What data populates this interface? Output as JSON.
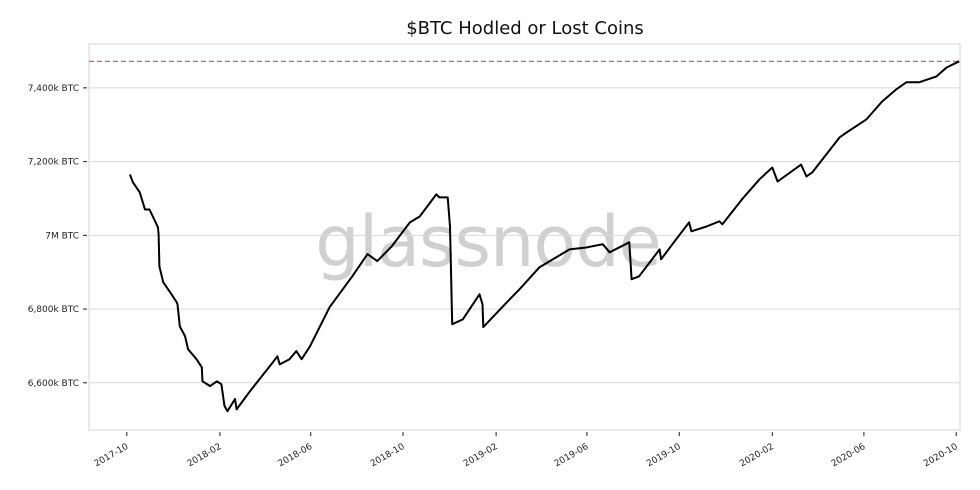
{
  "chart_data": {
    "type": "line",
    "title": "$BTC Hodled or Lost Coins",
    "watermark": "glassnode",
    "xlabel": "",
    "ylabel": "",
    "xlim": [
      "2017-08-12",
      "2020-10-06"
    ],
    "ylim": [
      6472,
      7519
    ],
    "grid": "horizontal",
    "x_ticks": [
      "2017-10",
      "2018-02",
      "2018-06",
      "2018-10",
      "2019-02",
      "2019-06",
      "2019-10",
      "2020-02",
      "2020-06",
      "2020-10"
    ],
    "y_ticks": [
      {
        "value": 6600,
        "label": "6,600k BTC"
      },
      {
        "value": 6800,
        "label": "6,800k BTC"
      },
      {
        "value": 7000,
        "label": "7M BTC"
      },
      {
        "value": 7200,
        "label": "7,200k BTC"
      },
      {
        "value": 7400,
        "label": "7,400k BTC"
      }
    ],
    "reference_line": {
      "value": 7472,
      "style": "dashed",
      "color": "#e0474c"
    },
    "line_color": "#000000",
    "series": [
      {
        "x": [
          "2017-10-05",
          "2017-10-09",
          "2017-10-18",
          "2017-10-25",
          "2017-10-31",
          "2017-11-11",
          "2017-11-12",
          "2017-11-13",
          "2017-11-18",
          "2017-11-27",
          "2017-12-06",
          "2017-12-07",
          "2017-12-10",
          "2017-12-17",
          "2017-12-21",
          "2018-01-01",
          "2018-01-08",
          "2018-01-09",
          "2018-01-19",
          "2018-01-28",
          "2018-02-03",
          "2018-02-07",
          "2018-02-11",
          "2018-02-21",
          "2018-02-23",
          "2018-03-12",
          "2018-04-12",
          "2018-04-18",
          "2018-04-21",
          "2018-05-04",
          "2018-05-13",
          "2018-05-20",
          "2018-05-31",
          "2018-06-26",
          "2018-07-26",
          "2018-08-15",
          "2018-08-28",
          "2018-09-16",
          "2018-10-10",
          "2018-10-23",
          "2018-11-14",
          "2018-11-18",
          "2018-11-29",
          "2018-12-02",
          "2018-12-05",
          "2018-12-19",
          "2019-01-10",
          "2019-01-14",
          "2019-01-15",
          "2019-02-15",
          "2019-03-04",
          "2019-03-30",
          "2019-05-09",
          "2019-05-31",
          "2019-06-22",
          "2019-07-01",
          "2019-07-27",
          "2019-07-30",
          "2019-08-09",
          "2019-09-05",
          "2019-09-07",
          "2019-09-25",
          "2019-10-14",
          "2019-10-17",
          "2019-11-06",
          "2019-11-23",
          "2019-11-27",
          "2019-12-23",
          "2020-01-15",
          "2020-02-01",
          "2020-02-08",
          "2020-03-10",
          "2020-03-17",
          "2020-03-25",
          "2020-04-30",
          "2020-05-09",
          "2020-06-04",
          "2020-06-25",
          "2020-07-14",
          "2020-07-27",
          "2020-08-13",
          "2020-09-05",
          "2020-09-18",
          "2020-10-05"
        ],
        "values": [
          7165,
          7144,
          7117,
          7070,
          7070,
          7022,
          7003,
          6916,
          6873,
          6846,
          6818,
          6813,
          6753,
          6726,
          6691,
          6664,
          6642,
          6604,
          6591,
          6604,
          6596,
          6537,
          6523,
          6556,
          6528,
          6575,
          6656,
          6672,
          6650,
          6664,
          6686,
          6664,
          6699,
          6805,
          6889,
          6949,
          6930,
          6970,
          7035,
          7051,
          7111,
          7103,
          7103,
          7024,
          6759,
          6772,
          6840,
          6813,
          6751,
          6818,
          6854,
          6913,
          6962,
          6967,
          6976,
          6954,
          6981,
          6881,
          6889,
          6962,
          6935,
          6984,
          7035,
          7011,
          7024,
          7038,
          7030,
          7098,
          7152,
          7184,
          7146,
          7192,
          7160,
          7171,
          7266,
          7279,
          7314,
          7363,
          7396,
          7415,
          7415,
          7431,
          7455,
          7472
        ]
      }
    ]
  }
}
